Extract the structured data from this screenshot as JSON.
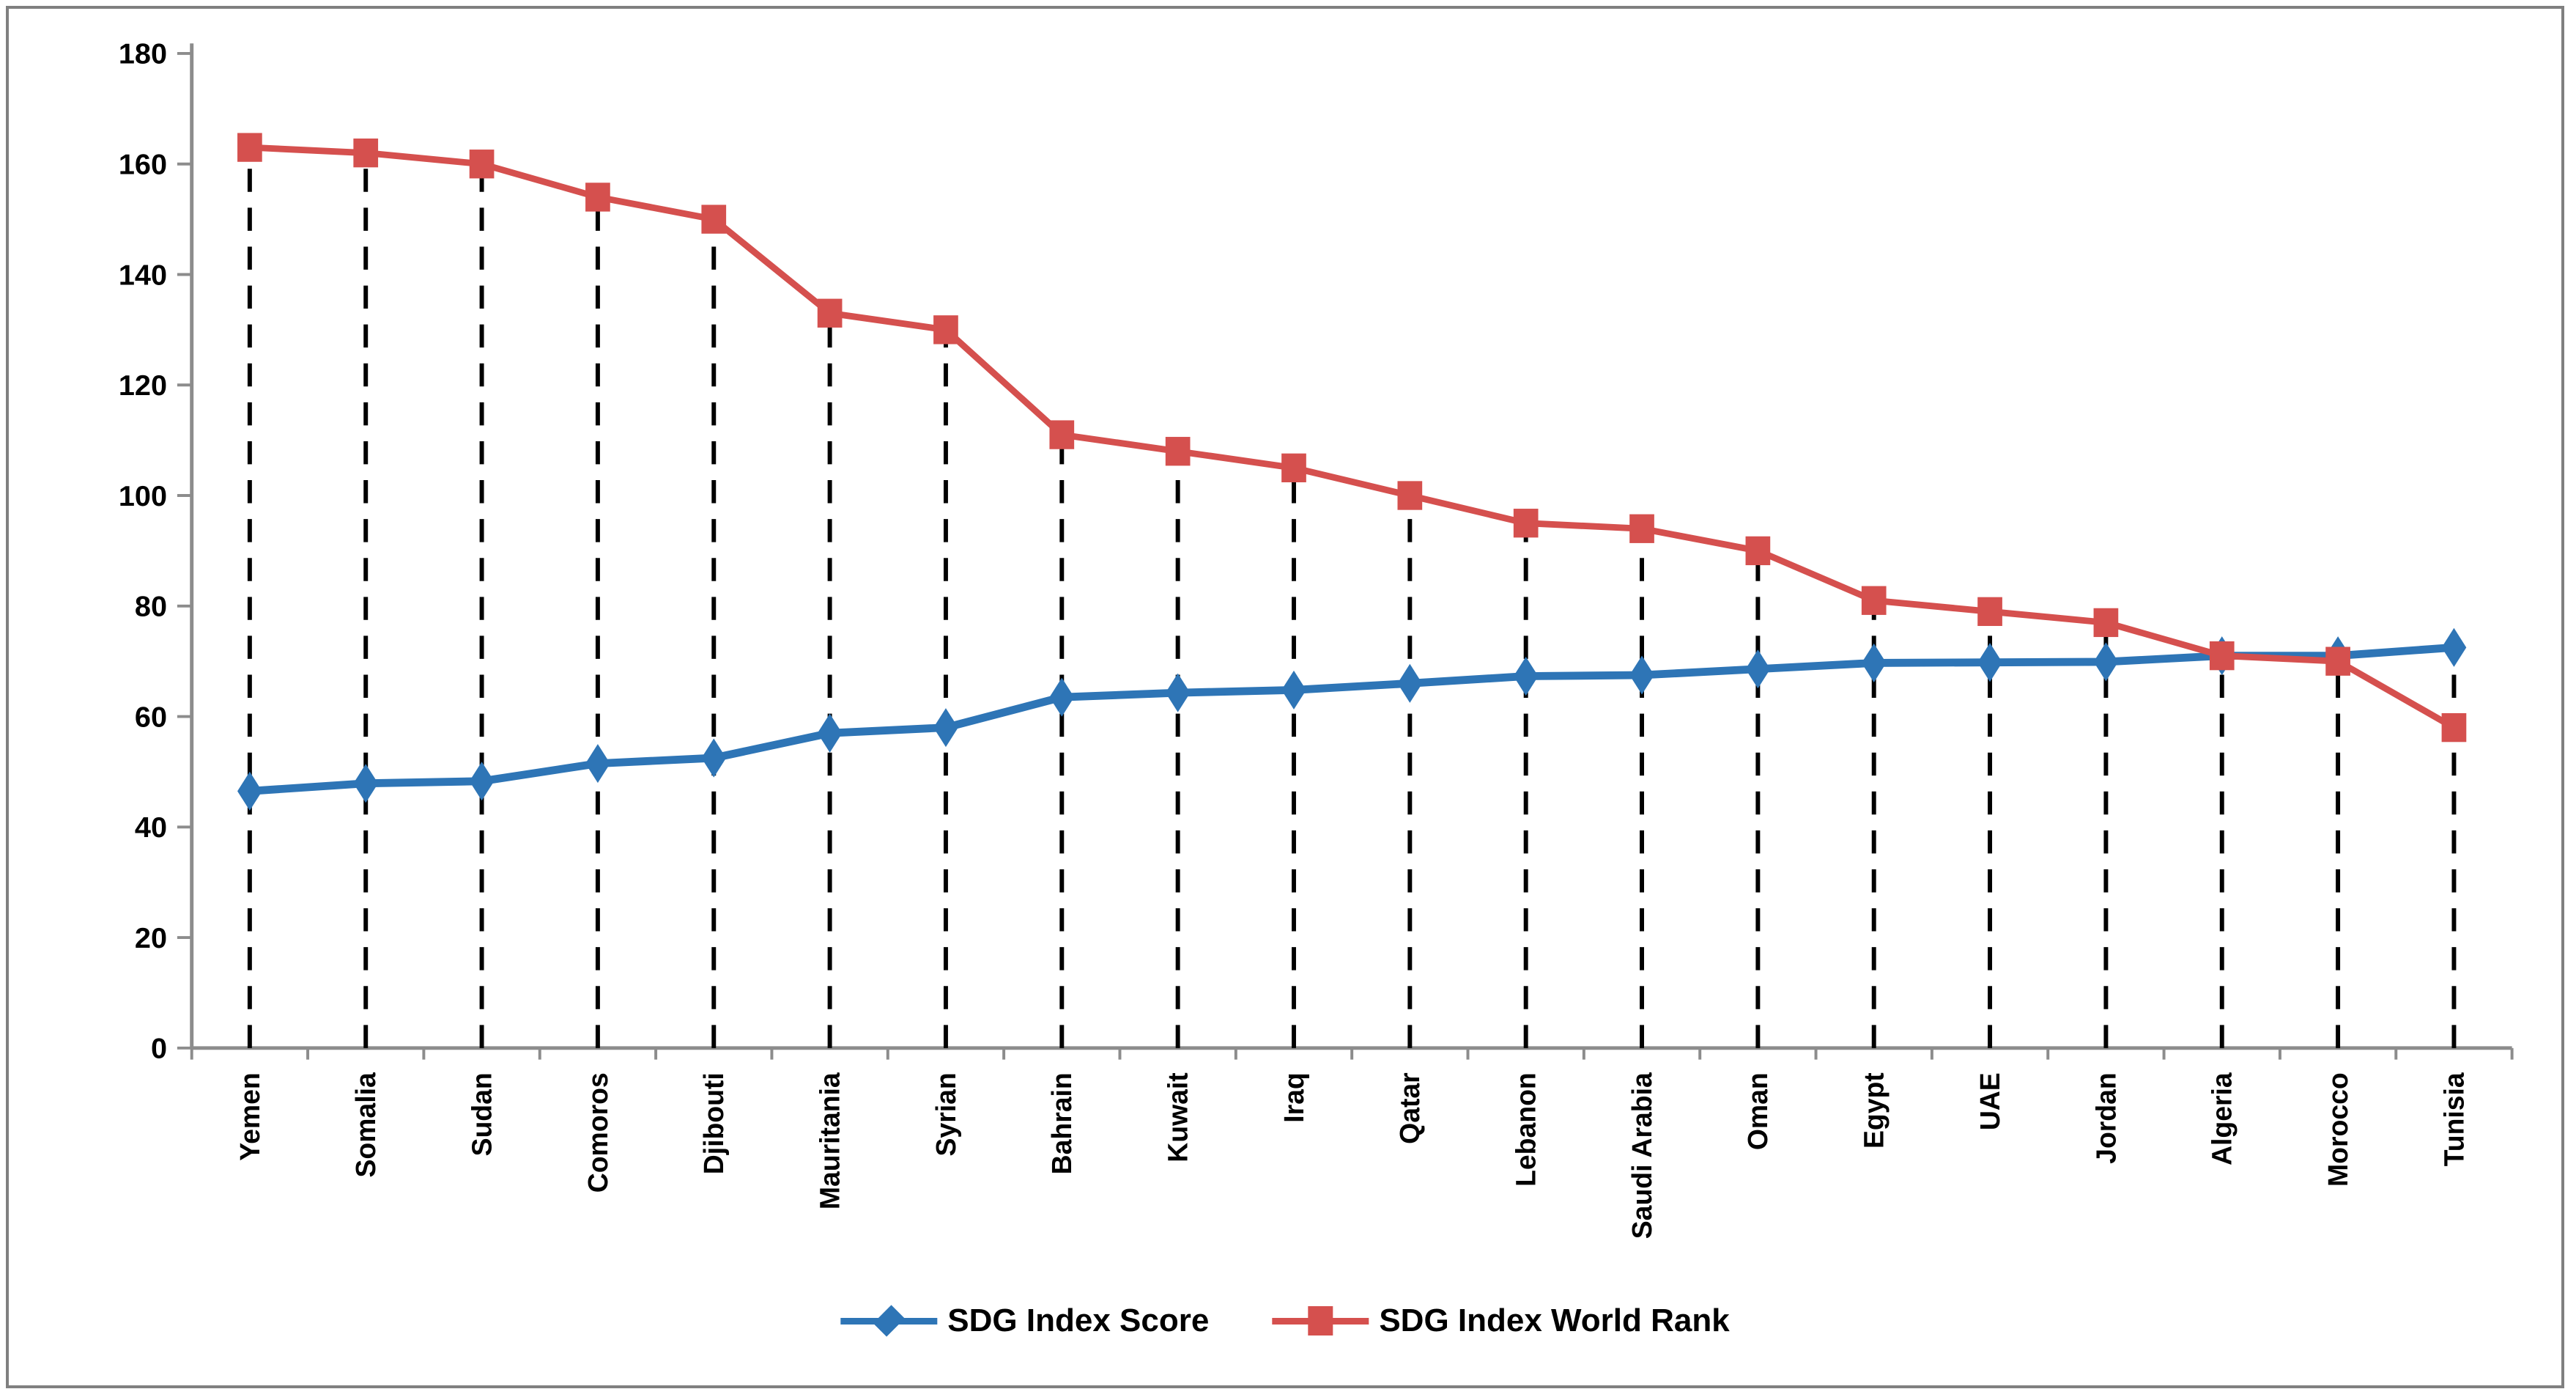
{
  "chart_data": {
    "type": "line",
    "title": "",
    "xlabel": "",
    "ylabel": "",
    "categories": [
      "Yemen",
      "Somalia",
      "Sudan",
      "Comoros",
      "Djibouti",
      "Mauritania",
      "Syrian",
      "Bahrain",
      "Kuwait",
      "Iraq",
      "Qatar",
      "Lebanon",
      "Saudi Arabia",
      "Oman",
      "Egypt",
      "UAE",
      "Jordan",
      "Algeria",
      "Morocco",
      "Tunisia"
    ],
    "series": [
      {
        "name": "SDG Index Score",
        "marker": "diamond",
        "color": "#2E75B6",
        "values": [
          46.5,
          47.9,
          48.3,
          51.5,
          52.5,
          57.0,
          58.0,
          63.5,
          64.3,
          64.8,
          66.0,
          67.3,
          67.5,
          68.6,
          69.7,
          69.8,
          69.9,
          71.0,
          71.0,
          72.5
        ]
      },
      {
        "name": "SDG Index World Rank",
        "marker": "square",
        "color": "#D5504E",
        "values": [
          163,
          162,
          160,
          154,
          150,
          133,
          130,
          111,
          108,
          105,
          100,
          95,
          94,
          90,
          81,
          79,
          77,
          71,
          70,
          58
        ]
      }
    ],
    "ylim": [
      0,
      180
    ],
    "yticks": [
      0,
      20,
      40,
      60,
      80,
      100,
      120,
      140,
      160,
      180
    ],
    "grid": false,
    "droplines": true,
    "legend_position": "bottom-center",
    "axis_color": "#8C8C8C",
    "dropline_color": "#000000",
    "text_color": "#000000"
  }
}
